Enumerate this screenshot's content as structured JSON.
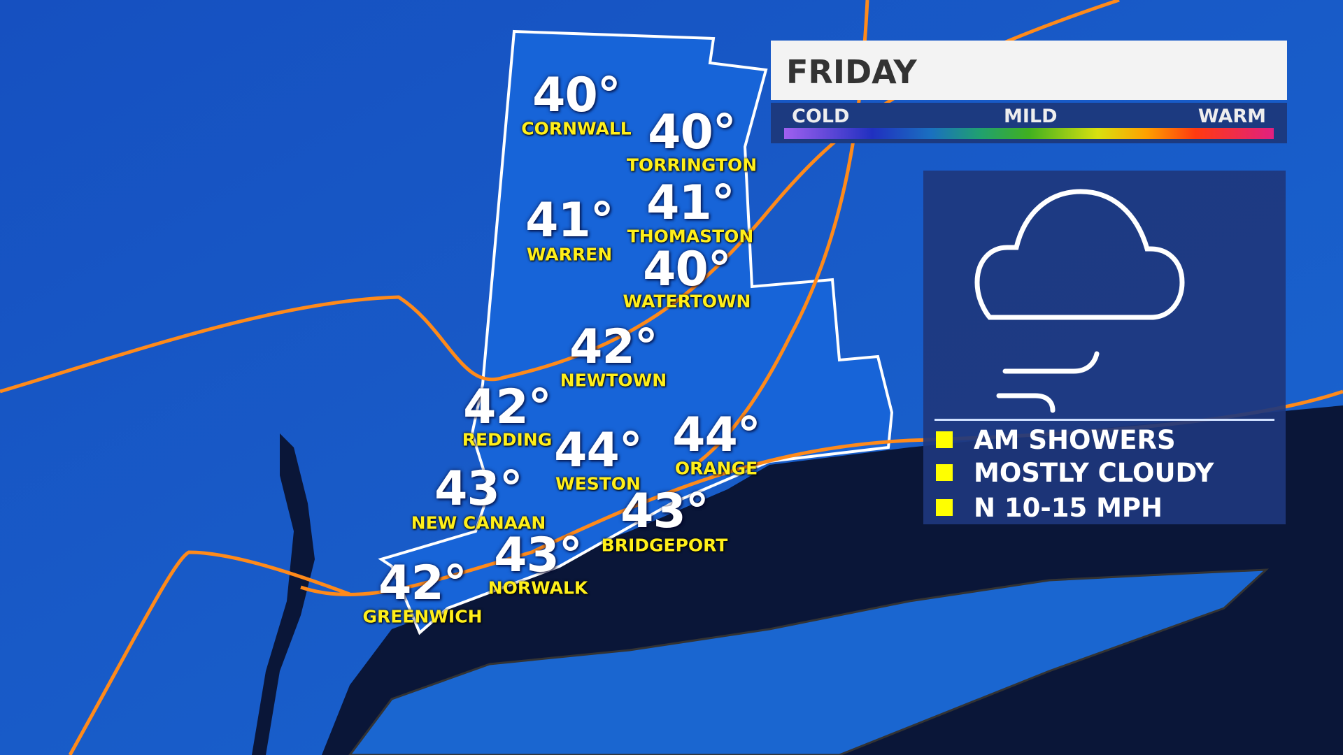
{
  "header": {
    "day": "FRIDAY"
  },
  "scale": {
    "cold": "COLD",
    "mild": "MILD",
    "warm": "WARM"
  },
  "forecast": {
    "icon": "cloud-wind-icon",
    "items": [
      "AM SHOWERS",
      "MOSTLY CLOUDY",
      "N 10-15 MPH"
    ],
    "bullet_color": "#ffff00"
  },
  "cities": [
    {
      "name": "CORNWALL",
      "temp": "40°"
    },
    {
      "name": "TORRINGTON",
      "temp": "40°"
    },
    {
      "name": "WARREN",
      "temp": "41°"
    },
    {
      "name": "THOMASTON",
      "temp": "41°"
    },
    {
      "name": "WATERTOWN",
      "temp": "40°"
    },
    {
      "name": "NEWTOWN",
      "temp": "42°"
    },
    {
      "name": "REDDING",
      "temp": "42°"
    },
    {
      "name": "WESTON",
      "temp": "44°"
    },
    {
      "name": "ORANGE",
      "temp": "44°"
    },
    {
      "name": "NEW CANAAN",
      "temp": "43°"
    },
    {
      "name": "BRIDGEPORT",
      "temp": "43°"
    },
    {
      "name": "NORWALK",
      "temp": "43°"
    },
    {
      "name": "GREENWICH",
      "temp": "42°"
    }
  ],
  "colors": {
    "land": "#1557c4",
    "region": "#1a6fe0",
    "water": "#0a1638",
    "highway": "#ff8a1a",
    "label": "#ffef1a"
  }
}
